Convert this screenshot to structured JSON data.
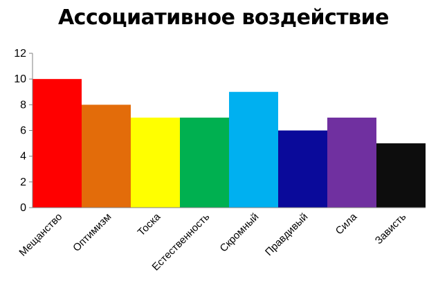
{
  "chart_data": {
    "type": "bar",
    "title": "Ассоциативное воздействие",
    "xlabel": "",
    "ylabel": "",
    "categories": [
      "Мещанство",
      "Оптимизм",
      "Тоска",
      "Естественность",
      "Скромный",
      "Правдивый",
      "Сила",
      "Зависть"
    ],
    "values": [
      10,
      8,
      7,
      7,
      9,
      6,
      7,
      5
    ],
    "colors": [
      "#ff0000",
      "#e36c0a",
      "#ffff00",
      "#00b050",
      "#00b0f0",
      "#0a0a9a",
      "#7030a0",
      "#0d0d0d"
    ],
    "ylim": [
      0,
      12
    ],
    "yticks": [
      0,
      2,
      4,
      6,
      8,
      10,
      12
    ],
    "grid": false,
    "legend": "none"
  }
}
